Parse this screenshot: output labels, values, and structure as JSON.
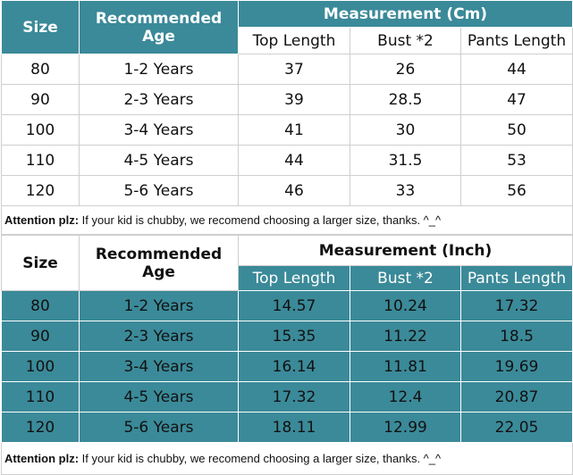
{
  "tables": [
    {
      "header": {
        "size": "Size",
        "age": "Recommended Age",
        "group": "Measurement (Cm)",
        "columns": [
          "Top Length",
          "Bust *2",
          "Pants Length"
        ]
      },
      "rows": [
        [
          "80",
          "1-2 Years",
          "37",
          "26",
          "44"
        ],
        [
          "90",
          "2-3 Years",
          "39",
          "28.5",
          "47"
        ],
        [
          "100",
          "3-4 Years",
          "41",
          "30",
          "50"
        ],
        [
          "110",
          "4-5 Years",
          "44",
          "31.5",
          "53"
        ],
        [
          "120",
          "5-6 Years",
          "46",
          "33",
          "56"
        ]
      ],
      "note": {
        "label": "Attention plz:",
        "text": "If your kid is chubby, we recomend choosing a larger size, thanks. ^_^"
      }
    },
    {
      "header": {
        "size": "Size",
        "age": "Recommended Age",
        "group": "Measurement (Inch)",
        "columns": [
          "Top Length",
          "Bust *2",
          "Pants Length"
        ]
      },
      "rows": [
        [
          "80",
          "1-2 Years",
          "14.57",
          "10.24",
          "17.32"
        ],
        [
          "90",
          "2-3 Years",
          "15.35",
          "11.22",
          "18.5"
        ],
        [
          "100",
          "3-4 Years",
          "16.14",
          "11.81",
          "19.69"
        ],
        [
          "110",
          "4-5 Years",
          "17.32",
          "12.4",
          "20.87"
        ],
        [
          "120",
          "5-6 Years",
          "18.11",
          "12.99",
          "22.05"
        ]
      ],
      "note": {
        "label": "Attention plz:",
        "text": "If your kid is chubby, we recomend choosing a larger size, thanks. ^_^"
      }
    }
  ]
}
